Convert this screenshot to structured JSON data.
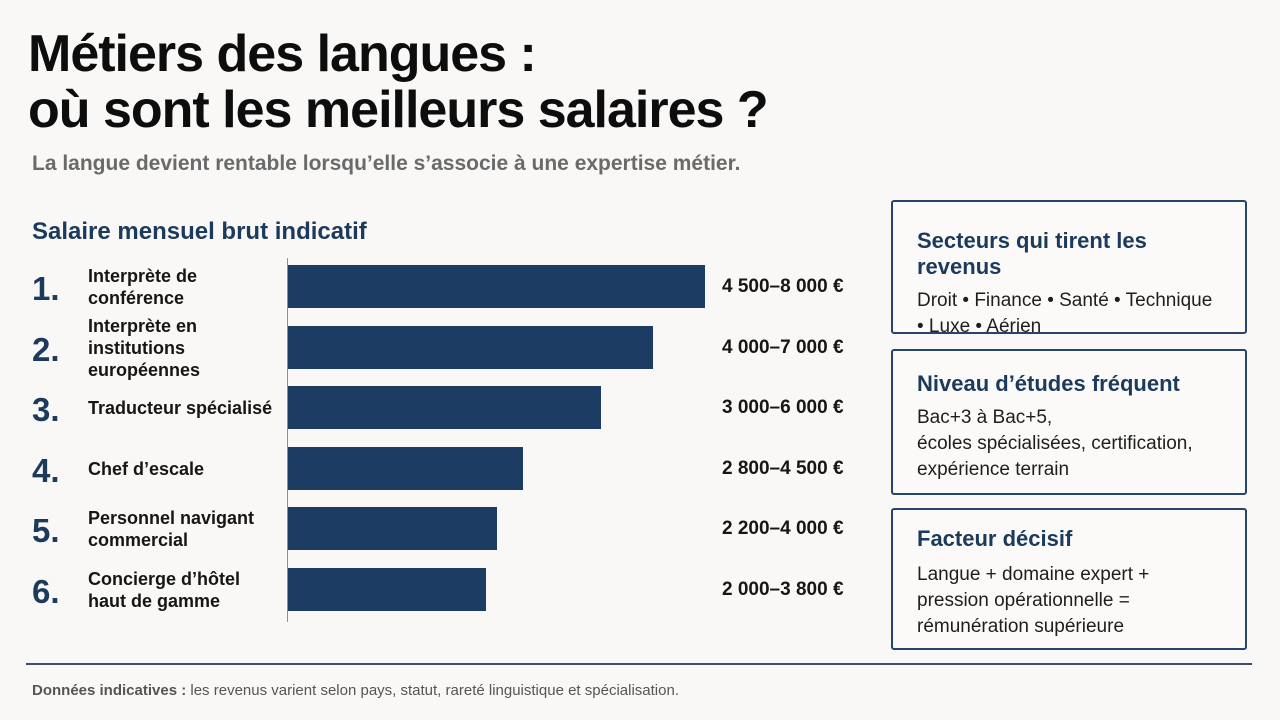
{
  "title": {
    "line1": "Métiers des langues :",
    "line2": "où sont les meilleurs salaires ?"
  },
  "subtitle": "La langue devient rentable lorsqu’elle s’associe à une expertise métier.",
  "chart_heading": "Salaire mensuel brut indicatif",
  "chart_data": {
    "type": "bar",
    "orientation": "horizontal",
    "title": "Salaire mensuel brut indicatif",
    "unit": "€",
    "categories": [
      "Interprète de conférence",
      "Interprète en institutions européennes",
      "Traducteur spécialisé",
      "Chef d’escale",
      "Personnel navigant commercial",
      "Concierge d’hôtel haut de gamme"
    ],
    "ranks": [
      "1.",
      "2.",
      "3.",
      "4.",
      "5.",
      "6."
    ],
    "label_lines": [
      [
        "Interprète de",
        "conférence"
      ],
      [
        "Interprète en",
        "institutions européennes"
      ],
      [
        "Traducteur spécialisé"
      ],
      [
        "Chef d’escale"
      ],
      [
        "Personnel navigant",
        "commercial"
      ],
      [
        "Concierge d’hôtel",
        "haut de gamme"
      ]
    ],
    "value_labels": [
      "4 500–8 000 €",
      "4 000–7 000 €",
      "3 000–6 000 €",
      "2 800–4 500 €",
      "2 200–4 000 €",
      "2 000–3 800 €"
    ],
    "series": [
      {
        "min": [
          4500,
          4000,
          3000,
          2800,
          2200,
          2000
        ],
        "max": [
          8000,
          7000,
          6000,
          4500,
          4000,
          3800
        ]
      }
    ],
    "xlim": [
      0,
      8000
    ],
    "grid": false,
    "bar_color": "#1d3c64"
  },
  "cards": [
    {
      "title": "Secteurs qui tirent les revenus",
      "lines": [
        "Droit • Finance • Santé • Technique",
        "• Luxe • Aérien"
      ]
    },
    {
      "title": "Niveau d’études fréquent",
      "lines": [
        "Bac+3 à Bac+5,",
        "écoles spécialisées, certification,",
        "expérience terrain"
      ]
    },
    {
      "title": "Facteur décisif",
      "lines": [
        "Langue + domaine expert +",
        "pression opérationnelle =",
        "rémunération supérieure"
      ]
    }
  ],
  "footer": {
    "bold": "Données indicatives :",
    "text": " les revenus varient selon pays, statut, rareté linguistique et spécialisation."
  },
  "colors": {
    "accent": "#1b3a5c",
    "bar": "#1d3c64",
    "background": "#f9f8f6"
  }
}
